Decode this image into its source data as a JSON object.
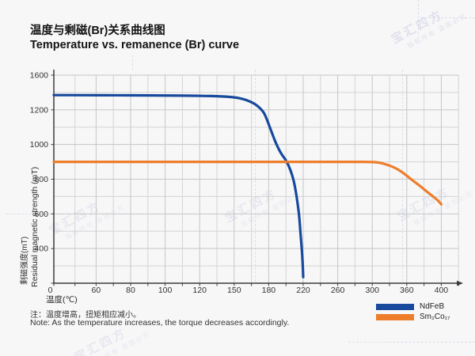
{
  "page": {
    "title_zh": "温度与剩磁(Br)关系曲线图",
    "title_en": "Temperature vs. remanence (Br) curve",
    "note_zh": "注：温度增高，扭矩相应减小。",
    "note_en": "Note: As the temperature increases, the torque decreases accordingly.",
    "watermark_main": "宝汇四方",
    "watermark_sub": "版权所有 盗图必究"
  },
  "chart_data": {
    "type": "line",
    "title": "温度与剩磁(Br)关系曲线图 / Temperature vs. remanence (Br) curve",
    "xlabel": "温度(℃)",
    "ylabel_zh": "剩磁强度(mT)",
    "ylabel_en": "Residual magnetic strength (mT)",
    "x_ticks": [
      0,
      60,
      80,
      100,
      120,
      150,
      180,
      220,
      260,
      300,
      360,
      400
    ],
    "y_ticks": [
      0,
      400,
      600,
      800,
      1000,
      1200,
      1600
    ],
    "grid": true,
    "legend_position": "bottom-right",
    "axis_note": "tick labels are equally spaced (category-style scale); minor gridline at every half interval",
    "series": [
      {
        "name": "NdFeB",
        "color": "#17499c",
        "points": [
          [
            0,
            1370
          ],
          [
            40,
            1369
          ],
          [
            80,
            1367
          ],
          [
            110,
            1364
          ],
          [
            130,
            1359
          ],
          [
            145,
            1350
          ],
          [
            155,
            1333
          ],
          [
            163,
            1300
          ],
          [
            170,
            1247
          ],
          [
            176,
            1180
          ],
          [
            182,
            1090
          ],
          [
            188,
            1013
          ],
          [
            194,
            952
          ],
          [
            200,
            908
          ],
          [
            205,
            855
          ],
          [
            209,
            790
          ],
          [
            212,
            710
          ],
          [
            215,
            600
          ],
          [
            217,
            480
          ],
          [
            219,
            300
          ],
          [
            220,
            70
          ]
        ]
      },
      {
        "name": "Sm₂Co₁₇",
        "color": "#ee7d2b",
        "points": [
          [
            0,
            900
          ],
          [
            60,
            900
          ],
          [
            120,
            900
          ],
          [
            200,
            900
          ],
          [
            260,
            900
          ],
          [
            290,
            900
          ],
          [
            305,
            898
          ],
          [
            315,
            893
          ],
          [
            325,
            884
          ],
          [
            335,
            872
          ],
          [
            345,
            855
          ],
          [
            355,
            833
          ],
          [
            365,
            800
          ],
          [
            375,
            762
          ],
          [
            385,
            722
          ],
          [
            395,
            682
          ],
          [
            400,
            655
          ]
        ]
      }
    ]
  }
}
